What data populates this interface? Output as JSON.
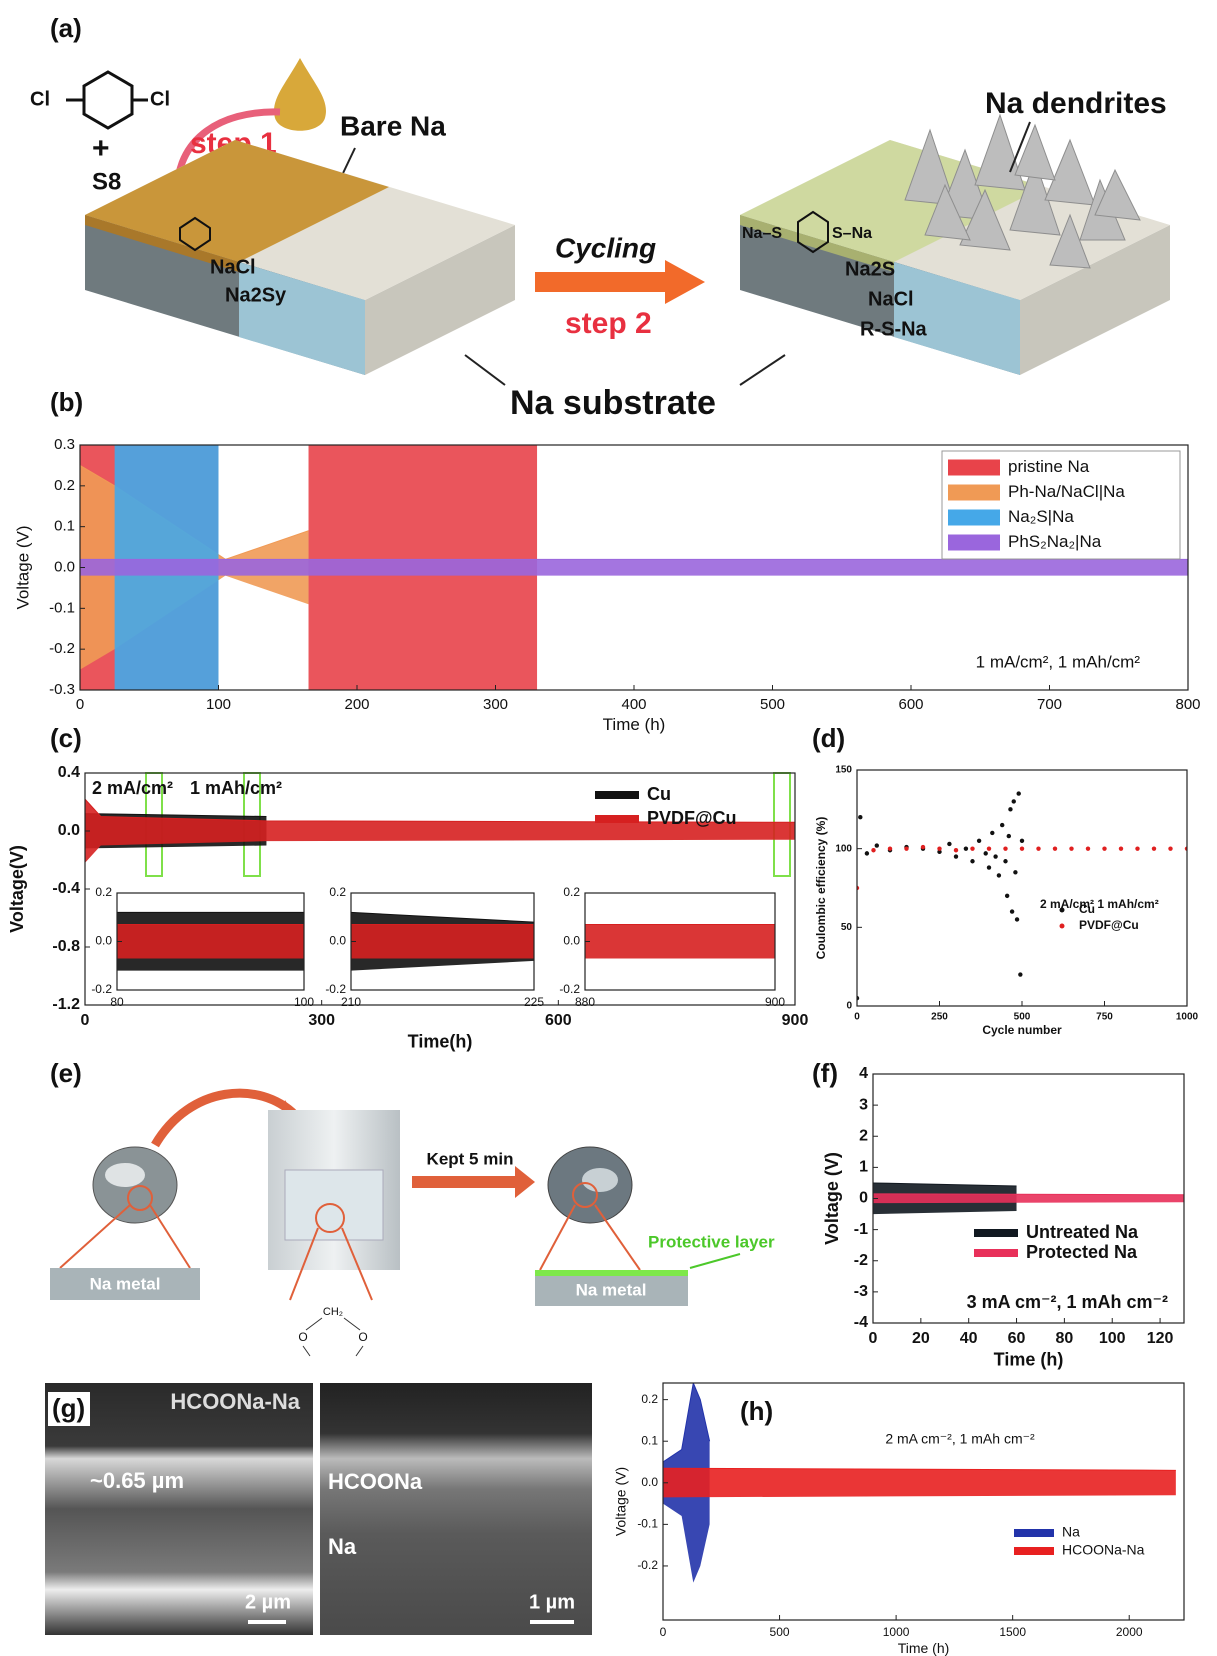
{
  "panel_a": {
    "label": "(a)",
    "cl_left": "Cl",
    "cl_right": "Cl",
    "plus": "+",
    "s8": "S8",
    "step1": "step 1",
    "bare_na": "Bare Na",
    "nacl": "NaCl",
    "na2sy": "Na2Sy",
    "cycling": "Cycling",
    "step2": "step 2",
    "na_dendrites": "Na dendrites",
    "na_s": "Na–S",
    "s_na": "S–Na",
    "na2s": "Na2S",
    "nacl_2": "NaCl",
    "rsna": "R-S-Na",
    "substrate": "Na substrate"
  },
  "panel_e": {
    "label": "(e)",
    "na_metal_1": "Na metal",
    "kept": "Kept 5 min",
    "protective": "Protective layer",
    "na_metal_2": "Na metal",
    "ch2": "CH₂",
    "o1": "O",
    "o2": "O"
  },
  "panel_g": {
    "label": "(g)",
    "title": "HCOONa-Na",
    "thickness": "~0.65 µm",
    "scale_1": "2 µm",
    "layer": "HCOONa",
    "na": "Na",
    "scale_2": "1 µm"
  },
  "chart_data": [
    {
      "type": "area",
      "label": "(b)",
      "ylabel": "Voltage (V)",
      "xlabel": "Time (h)",
      "xlim": [
        0,
        800
      ],
      "ylim": [
        -0.3,
        0.3
      ],
      "xticks": [
        0,
        100,
        200,
        300,
        400,
        500,
        600,
        700,
        800
      ],
      "yticks": [
        -0.3,
        -0.2,
        -0.1,
        {
          "value": 0,
          "label": "0.0"
        },
        0.1,
        0.2,
        0.3
      ],
      "legend": "upper right",
      "annotations": [
        "1 mA/cm², 1 mAh/cm²"
      ],
      "series": [
        {
          "name": "pristine Na",
          "color": "#e8434a",
          "x": [
            0,
            100,
            130,
            165,
            330
          ],
          "values": [
            0.3,
            0.3,
            null,
            0.3,
            0.3
          ]
        },
        {
          "name": "Ph-Na/NaCl|Na",
          "color": "#f09a55",
          "x": [
            0,
            25,
            105,
            165
          ],
          "values": [
            0.25,
            0.2,
            0.02,
            0.09
          ]
        },
        {
          "name": "Na₂S|Na",
          "color": "#45a8e8",
          "x": [
            25,
            100
          ],
          "values": [
            0.3,
            0.3
          ]
        },
        {
          "name": "PhS₂Na₂|Na",
          "color": "#9a66dd",
          "x": [
            0,
            800
          ],
          "values": [
            0.02,
            0.02
          ]
        }
      ]
    },
    {
      "type": "area",
      "label": "(c)",
      "ylabel": "Voltage(V)",
      "xlabel": "Time(h)",
      "xlim": [
        0,
        900
      ],
      "ylim": [
        -1.2,
        0.4
      ],
      "xticks": [
        0,
        300,
        600,
        900
      ],
      "yticks": [
        -1.2,
        -0.8,
        -0.4,
        {
          "value": 0,
          "label": "0.0"
        },
        0.4
      ],
      "legend": "upper right",
      "annotations": [
        "2 mA/cm²",
        "1 mAh/cm²"
      ],
      "series": [
        {
          "name": "Cu",
          "color": "#111111",
          "x": [
            0,
            230
          ],
          "values": [
            0.12,
            0.1
          ]
        },
        {
          "name": "PVDF@Cu",
          "color": "#d62020",
          "x": [
            0,
            20,
            230,
            900
          ],
          "values": [
            0.22,
            0.1,
            0.07,
            0.06
          ]
        }
      ]
    },
    {
      "type": "area",
      "xlim": [
        80,
        100
      ],
      "ylim": [
        -0.2,
        0.2
      ],
      "xticks": [
        80,
        100
      ],
      "yticks": [
        -0.2,
        {
          "value": 0,
          "label": "0.0"
        },
        0.2
      ],
      "series": [
        {
          "color": "#111111",
          "x": [
            80,
            100
          ],
          "values": [
            0.12,
            0.12
          ]
        },
        {
          "color": "#d62020",
          "x": [
            80,
            100
          ],
          "values": [
            0.07,
            0.07
          ]
        }
      ]
    },
    {
      "type": "area",
      "xlim": [
        210,
        225
      ],
      "ylim": [
        -0.2,
        0.2
      ],
      "xticks": [
        210,
        225
      ],
      "yticks": [
        -0.2,
        {
          "value": 0,
          "label": "0.0"
        },
        0.2
      ],
      "series": [
        {
          "color": "#111111",
          "x": [
            210,
            225
          ],
          "values": [
            0.12,
            0.08
          ]
        },
        {
          "color": "#d62020",
          "x": [
            210,
            225
          ],
          "values": [
            0.07,
            0.07
          ]
        }
      ]
    },
    {
      "type": "area",
      "xlim": [
        880,
        900
      ],
      "ylim": [
        -0.2,
        0.2
      ],
      "xticks": [
        880,
        900
      ],
      "yticks": [
        -0.2,
        {
          "value": 0,
          "label": "0.0"
        },
        0.2
      ],
      "series": [
        {
          "color": "#d62020",
          "x": [
            880,
            900
          ],
          "values": [
            0.07,
            0.07
          ]
        }
      ]
    },
    {
      "type": "scatter",
      "label": "(d)",
      "ylabel": "Coulombic efficiency (%)",
      "xlabel": "Cycle number",
      "xlim": [
        0,
        1000
      ],
      "ylim": [
        0,
        150
      ],
      "xticks": [
        0,
        250,
        500,
        750,
        1000
      ],
      "yticks": [
        0,
        50,
        100,
        150
      ],
      "legend": "center right",
      "annotations": [
        "2 mA/cm²  1 mAh/cm²"
      ],
      "series": [
        {
          "name": "Cu",
          "color": "#111111",
          "x": [
            0,
            10,
            30,
            60,
            100,
            150,
            200,
            250,
            280,
            300,
            330,
            350,
            370,
            390,
            400,
            410,
            420,
            430,
            440,
            450,
            455,
            460,
            465,
            470,
            475,
            480,
            485,
            490,
            495,
            500
          ],
          "values": [
            5,
            120,
            97,
            102,
            99,
            101,
            100,
            98,
            103,
            95,
            100,
            92,
            105,
            97,
            88,
            110,
            95,
            83,
            115,
            92,
            70,
            108,
            125,
            60,
            130,
            85,
            55,
            135,
            20,
            105
          ]
        },
        {
          "name": "PVDF@Cu",
          "color": "#e02020",
          "x": [
            0,
            50,
            100,
            150,
            200,
            250,
            300,
            350,
            400,
            450,
            500,
            550,
            600,
            650,
            700,
            750,
            800,
            850,
            900,
            950,
            1000
          ],
          "values": [
            75,
            99,
            100,
            100,
            101,
            100,
            99,
            100,
            100,
            100,
            100,
            100,
            100,
            100,
            100,
            100,
            100,
            100,
            100,
            100,
            100
          ]
        }
      ]
    },
    {
      "type": "area",
      "label": "(f)",
      "ylabel": "Voltage (V)",
      "xlabel": "Time (h)",
      "xlim": [
        0,
        130
      ],
      "ylim": [
        -4,
        4
      ],
      "xticks": [
        0,
        20,
        40,
        60,
        80,
        100,
        120
      ],
      "yticks": [
        -4,
        -3,
        -2,
        -1,
        0,
        1,
        2,
        3,
        4
      ],
      "legend": "lower right",
      "annotations": [
        "3 mA cm⁻², 1 mAh cm⁻²"
      ],
      "series": [
        {
          "name": "Untreated Na",
          "color": "#111820",
          "x": [
            0,
            60
          ],
          "values": [
            0.5,
            0.4
          ]
        },
        {
          "name": "Protected Na",
          "color": "#e8305a",
          "x": [
            0,
            130
          ],
          "values": [
            0.15,
            0.12
          ]
        }
      ]
    },
    {
      "type": "area",
      "label": "(h)",
      "ylabel": "Voltage (V)",
      "xlabel": "Time (h)",
      "xlim": [
        0,
        2235
      ],
      "ylim": [
        -0.33,
        0.24
      ],
      "xticks": [
        0,
        500,
        1000,
        1500,
        2000
      ],
      "yticks": [
        -0.2,
        -0.1,
        {
          "value": 0,
          "label": "0.0"
        },
        0.1,
        0.2
      ],
      "legend": "lower right",
      "annotations": [
        "2 mA cm⁻², 1 mAh cm⁻²"
      ],
      "series": [
        {
          "name": "Na",
          "color": "#2233aa",
          "x": [
            0,
            80,
            130,
            160,
            200
          ],
          "values": [
            0.05,
            0.08,
            0.24,
            0.2,
            0.1
          ]
        },
        {
          "name": "HCOONa-Na",
          "color": "#e82020",
          "x": [
            0,
            2200
          ],
          "values": [
            0.035,
            0.03
          ]
        }
      ]
    }
  ]
}
